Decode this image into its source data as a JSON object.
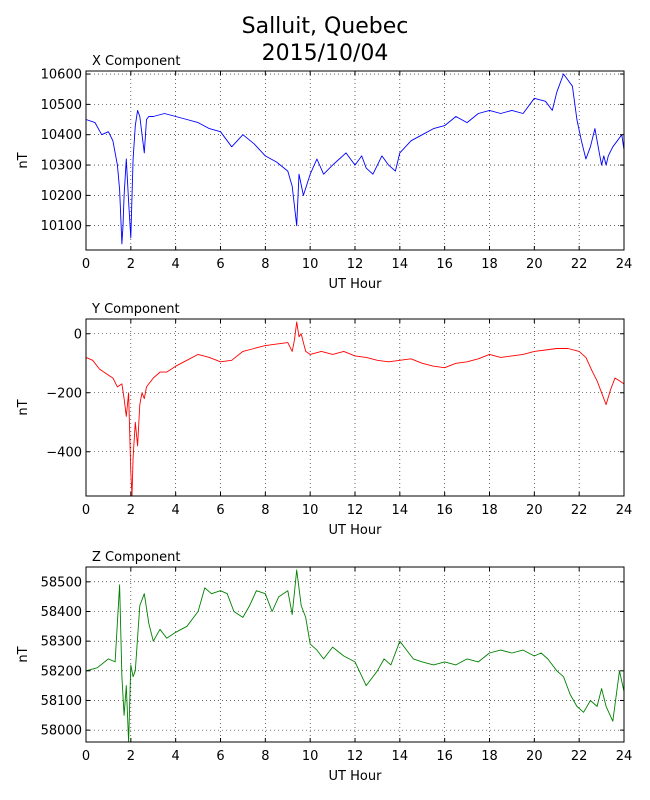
{
  "title_line1": "Salluit, Quebec",
  "title_line2": "2015/10/04",
  "chart_data": [
    {
      "type": "line",
      "title": "X Component",
      "xlabel": "UT Hour",
      "ylabel": "nT",
      "xlim": [
        0,
        24
      ],
      "ylim": [
        10020,
        10610
      ],
      "xticks": [
        0,
        2,
        4,
        6,
        8,
        10,
        12,
        14,
        16,
        18,
        20,
        22,
        24
      ],
      "yticks": [
        10100,
        10200,
        10300,
        10400,
        10500,
        10600
      ],
      "grid": true,
      "color": "#0000ff",
      "series": [
        {
          "x": [
            0,
            0.4,
            0.7,
            1.0,
            1.2,
            1.4,
            1.5,
            1.6,
            1.65,
            1.7,
            1.8,
            1.9,
            2.0,
            2.1,
            2.2,
            2.3,
            2.4,
            2.6,
            2.7,
            2.8,
            3.0,
            3.5,
            4.0,
            4.5,
            5.0,
            5.5,
            6.0,
            6.5,
            7.0,
            7.5,
            8.0,
            8.5,
            9.0,
            9.2,
            9.4,
            9.5,
            9.7,
            10.0,
            10.3,
            10.6,
            11.0,
            11.3,
            11.6,
            12.0,
            12.3,
            12.5,
            12.8,
            13.0,
            13.2,
            13.5,
            13.8,
            14.0,
            14.5,
            15.0,
            15.5,
            16.0,
            16.5,
            17.0,
            17.5,
            18.0,
            18.5,
            19.0,
            19.5,
            20.0,
            20.5,
            20.8,
            21.0,
            21.3,
            21.5,
            21.7,
            21.9,
            22.1,
            22.3,
            22.5,
            22.7,
            22.9,
            23.0,
            23.1,
            23.2,
            23.3,
            23.5,
            23.7,
            23.9,
            24.0
          ],
          "y": [
            10450,
            10440,
            10400,
            10410,
            10380,
            10300,
            10220,
            10040,
            10100,
            10200,
            10320,
            10180,
            10060,
            10320,
            10430,
            10480,
            10460,
            10340,
            10450,
            10460,
            10460,
            10470,
            10460,
            10450,
            10440,
            10420,
            10410,
            10360,
            10400,
            10370,
            10330,
            10310,
            10280,
            10230,
            10100,
            10270,
            10200,
            10270,
            10320,
            10270,
            10300,
            10320,
            10340,
            10300,
            10330,
            10290,
            10270,
            10300,
            10330,
            10300,
            10280,
            10340,
            10380,
            10400,
            10420,
            10430,
            10460,
            10440,
            10470,
            10480,
            10470,
            10480,
            10470,
            10520,
            10510,
            10480,
            10540,
            10600,
            10580,
            10560,
            10450,
            10380,
            10320,
            10360,
            10420,
            10340,
            10300,
            10330,
            10300,
            10330,
            10360,
            10380,
            10400,
            10350
          ]
        }
      ]
    },
    {
      "type": "line",
      "title": "Y Component",
      "xlabel": "UT Hour",
      "ylabel": "nT",
      "xlim": [
        0,
        24
      ],
      "ylim": [
        -550,
        50
      ],
      "xticks": [
        0,
        2,
        4,
        6,
        8,
        10,
        12,
        14,
        16,
        18,
        20,
        22,
        24
      ],
      "yticks": [
        -400,
        -200,
        0
      ],
      "grid": true,
      "color": "#ff0000",
      "series": [
        {
          "x": [
            0,
            0.3,
            0.6,
            1.0,
            1.2,
            1.4,
            1.6,
            1.7,
            1.8,
            1.9,
            2.0,
            2.05,
            2.1,
            2.2,
            2.3,
            2.4,
            2.5,
            2.6,
            2.7,
            2.8,
            3.0,
            3.3,
            3.6,
            4.0,
            4.5,
            5.0,
            5.5,
            6.0,
            6.5,
            7.0,
            7.5,
            8.0,
            8.5,
            9.0,
            9.2,
            9.3,
            9.4,
            9.5,
            9.6,
            9.7,
            9.8,
            10.0,
            10.5,
            11.0,
            11.5,
            12.0,
            12.5,
            13.0,
            13.5,
            14.0,
            14.5,
            15.0,
            15.5,
            16.0,
            16.5,
            17.0,
            17.5,
            18.0,
            18.5,
            19.0,
            19.5,
            20.0,
            20.5,
            21.0,
            21.5,
            22.0,
            22.3,
            22.6,
            22.8,
            23.0,
            23.2,
            23.4,
            23.6,
            23.8,
            24.0
          ],
          "y": [
            -80,
            -90,
            -120,
            -140,
            -150,
            -180,
            -170,
            -220,
            -280,
            -200,
            -470,
            -550,
            -420,
            -300,
            -380,
            -240,
            -200,
            -220,
            -180,
            -170,
            -150,
            -130,
            -130,
            -110,
            -90,
            -70,
            -80,
            -95,
            -90,
            -60,
            -50,
            -40,
            -35,
            -30,
            -60,
            -20,
            40,
            -10,
            0,
            -30,
            -60,
            -70,
            -60,
            -70,
            -60,
            -75,
            -80,
            -90,
            -95,
            -90,
            -85,
            -100,
            -110,
            -115,
            -100,
            -95,
            -85,
            -70,
            -80,
            -75,
            -70,
            -60,
            -55,
            -50,
            -50,
            -60,
            -80,
            -130,
            -160,
            -200,
            -240,
            -190,
            -150,
            -160,
            -170
          ]
        }
      ]
    },
    {
      "type": "line",
      "title": "Z Component",
      "xlabel": "UT Hour",
      "ylabel": "nT",
      "xlim": [
        0,
        24
      ],
      "ylim": [
        57960,
        58550
      ],
      "xticks": [
        0,
        2,
        4,
        6,
        8,
        10,
        12,
        14,
        16,
        18,
        20,
        22,
        24
      ],
      "yticks": [
        58000,
        58100,
        58200,
        58300,
        58400,
        58500
      ],
      "grid": true,
      "color": "#008000",
      "series": [
        {
          "x": [
            0,
            0.5,
            1.0,
            1.3,
            1.5,
            1.6,
            1.7,
            1.8,
            1.9,
            2.0,
            2.1,
            2.2,
            2.4,
            2.6,
            2.8,
            3.0,
            3.3,
            3.6,
            4.0,
            4.5,
            5.0,
            5.3,
            5.6,
            6.0,
            6.3,
            6.6,
            7.0,
            7.3,
            7.6,
            8.0,
            8.3,
            8.6,
            9.0,
            9.2,
            9.4,
            9.6,
            9.8,
            10.0,
            10.3,
            10.6,
            11.0,
            11.5,
            12.0,
            12.5,
            13.0,
            13.3,
            13.6,
            14.0,
            14.3,
            14.6,
            15.0,
            15.5,
            16.0,
            16.5,
            17.0,
            17.5,
            18.0,
            18.5,
            19.0,
            19.5,
            20.0,
            20.3,
            20.6,
            21.0,
            21.3,
            21.6,
            21.9,
            22.2,
            22.5,
            22.8,
            23.0,
            23.2,
            23.5,
            23.8,
            24.0
          ],
          "y": [
            58200,
            58210,
            58240,
            58230,
            58490,
            58180,
            58050,
            58150,
            57960,
            58220,
            58180,
            58200,
            58420,
            58460,
            58360,
            58300,
            58340,
            58310,
            58330,
            58350,
            58400,
            58480,
            58460,
            58470,
            58460,
            58400,
            58380,
            58420,
            58470,
            58460,
            58400,
            58450,
            58470,
            58390,
            58540,
            58420,
            58380,
            58290,
            58270,
            58240,
            58280,
            58250,
            58230,
            58150,
            58200,
            58240,
            58220,
            58300,
            58270,
            58240,
            58230,
            58220,
            58230,
            58220,
            58240,
            58230,
            58260,
            58270,
            58260,
            58270,
            58250,
            58260,
            58240,
            58200,
            58180,
            58120,
            58080,
            58060,
            58100,
            58080,
            58140,
            58080,
            58030,
            58200,
            58130
          ]
        }
      ]
    }
  ]
}
